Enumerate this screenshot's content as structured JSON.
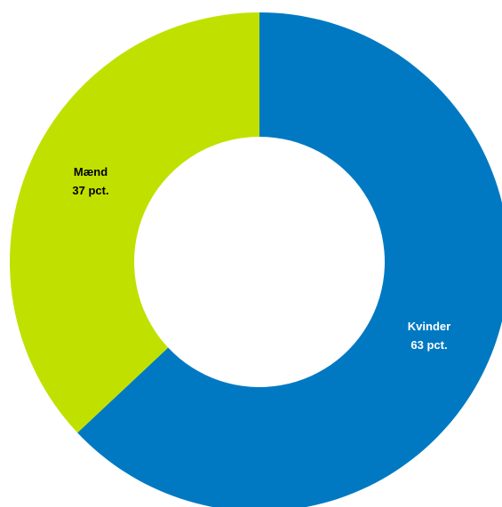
{
  "chart_data": {
    "type": "pie",
    "variant": "donut",
    "title": "",
    "slices": [
      {
        "name": "Kvinder",
        "value": 63,
        "value_label": "63 pct.",
        "color": "#0079C2",
        "label_color": "#ffffff"
      },
      {
        "name": "Mænd",
        "value": 37,
        "value_label": "37 pct.",
        "color": "#C0E100",
        "label_color": "#000000"
      }
    ],
    "start": "top",
    "direction": "clockwise",
    "legend": "none"
  }
}
